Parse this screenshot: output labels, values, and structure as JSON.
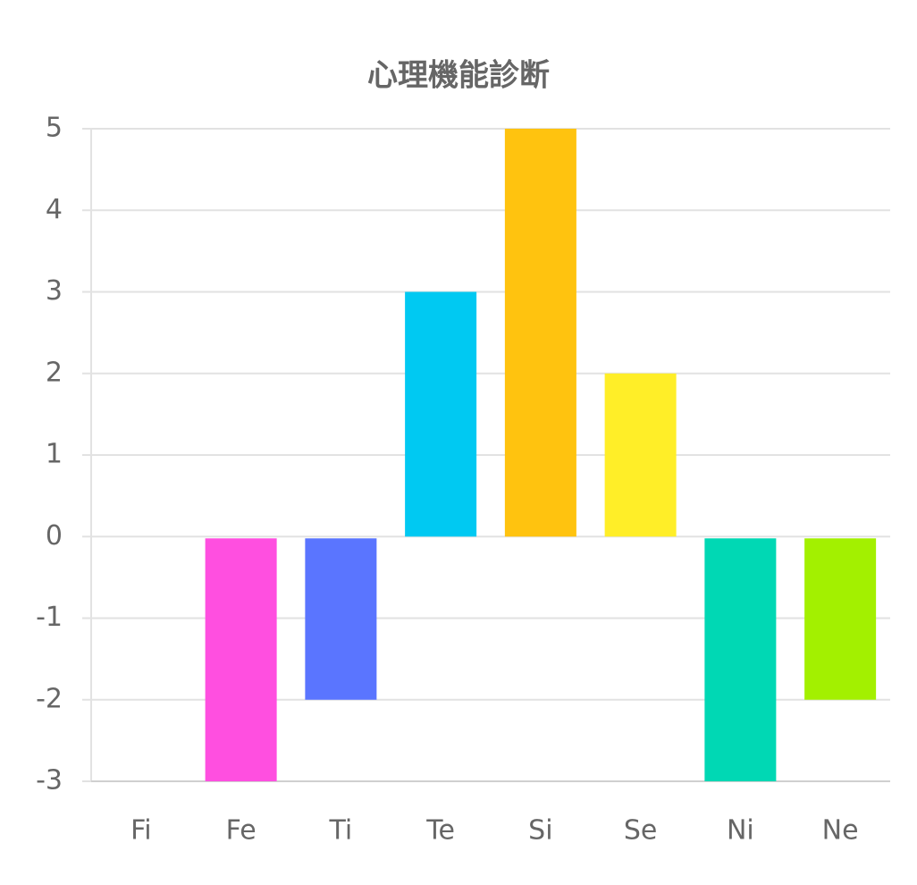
{
  "chart_data": {
    "type": "bar",
    "title": "心理機能診断",
    "categories": [
      "Fi",
      "Fe",
      "Ti",
      "Te",
      "Si",
      "Se",
      "Ni",
      "Ne"
    ],
    "values": [
      0,
      -3,
      -2,
      3,
      5,
      2,
      -3,
      -2
    ],
    "colors": [
      null,
      "#ff4fe0",
      "#5a75ff",
      "#00c9f2",
      "#ffc30f",
      "#ffee28",
      "#00d8b4",
      "#a3f000"
    ],
    "ylim": [
      -3,
      5
    ],
    "yticks": [
      -3,
      -2,
      -1,
      0,
      1,
      2,
      3,
      4,
      5
    ],
    "grid": true
  }
}
